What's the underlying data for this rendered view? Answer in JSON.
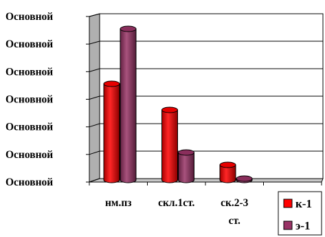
{
  "chart_data": {
    "type": "bar",
    "y_ticks": [
      "Основной",
      "Основной",
      "Основной",
      "Основной",
      "Основной",
      "Основной",
      "Основной"
    ],
    "categories": [
      [
        "нм.пз"
      ],
      [
        "скл.1ст."
      ],
      [
        "ск.2-3",
        "ст."
      ],
      [
        ""
      ]
    ],
    "series": [
      {
        "name": "к-1",
        "color": "#ff0000",
        "values": [
          3.5,
          2.55,
          0.55,
          0
        ]
      },
      {
        "name": "э-1",
        "color": "#993366",
        "values": [
          5.5,
          1.0,
          0.05,
          0
        ]
      }
    ],
    "ylim": [
      0,
      6
    ],
    "grid": true,
    "legend_position": "bottom-right",
    "style": "3d-cylinder"
  }
}
